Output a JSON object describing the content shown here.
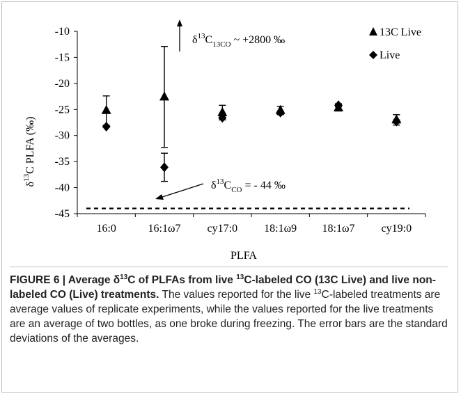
{
  "chart_data": {
    "type": "scatter",
    "categories": [
      "16:0",
      "16:1ω7",
      "cy17:0",
      "18:1ω9",
      "18:1ω7",
      "cy19:0"
    ],
    "xlabel": "PLFA",
    "ylabel": "δ13C PLFA (‰)",
    "ylabel_parts": {
      "delta": "δ",
      "sup": "13",
      "rest": "C PLFA (‰)"
    },
    "ylim": [
      -45,
      -10
    ],
    "yticks": [
      -10,
      -15,
      -20,
      -25,
      -30,
      -35,
      -40,
      -45
    ],
    "grid": false,
    "legend_position": "top-right",
    "series": [
      {
        "name": "13C Live",
        "marker": "triangle",
        "values": [
          -25.2,
          -22.6,
          -25.6,
          -25.2,
          -24.7,
          -27.0
        ],
        "errors": [
          2.8,
          9.7,
          1.4,
          0.8,
          0.6,
          1.0
        ]
      },
      {
        "name": "Live",
        "marker": "diamond",
        "values": [
          -28.3,
          -36.1,
          -26.6,
          -25.6,
          -24.2,
          -27.3
        ],
        "errors": [
          0,
          2.7,
          0.4,
          0.3,
          0.3,
          0.3
        ]
      }
    ],
    "reference_line": {
      "y": -44,
      "style": "dashed"
    },
    "annotations": [
      {
        "id": "co13",
        "delta": "δ",
        "sup": "13",
        "base": "C",
        "sub": "13CO",
        "tail": " ~ +2800 ‰"
      },
      {
        "id": "co",
        "delta": "δ",
        "sup": "13",
        "base": "C",
        "sub": "CO",
        "tail": " = - 44 ‰"
      }
    ],
    "colors": {
      "marks": "#000000"
    }
  },
  "caption": {
    "bold_1": "FIGURE 6 | Average δ",
    "bold_sup_1": "13",
    "bold_2": "C of PLFAs from live ",
    "bold_sup_2": "13",
    "bold_3": "C-labeled CO (13C Live) and live non-labeled CO (Live) treatments.",
    "text_1": " The values reported for the live ",
    "text_sup": "13",
    "text_2": "C-labeled treatments are average values of replicate experiments, while the values reported for the live treatments are an average of two bottles, as one broke during freezing. The error bars are the standard deviations of the averages."
  }
}
